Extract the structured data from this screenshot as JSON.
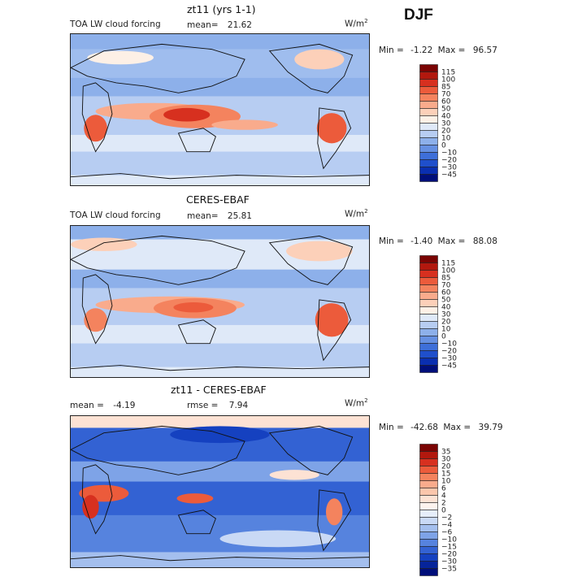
{
  "season": "DJF",
  "chart_data": [
    {
      "type": "heatmap",
      "title": "zt11 (yrs 1-1)",
      "subtitle": "TOA LW cloud forcing",
      "mean_label": "mean=",
      "mean_value": "21.62",
      "units": "W/m",
      "units_sup": "2",
      "min_label": "Min =",
      "min_value": "-1.22",
      "max_label": "Max =",
      "max_value": "96.57",
      "colorbar_levels": [
        "115",
        "100",
        "85",
        "70",
        "60",
        "50",
        "40",
        "30",
        "20",
        "10",
        "0",
        "-10",
        "-20",
        "-30",
        "-45"
      ],
      "colorbar_colors": [
        "#7a0403",
        "#b2180e",
        "#d7301f",
        "#ec5b3b",
        "#f4835e",
        "#f9ab8c",
        "#fcd0b9",
        "#fdf0e6",
        "#dfe9f8",
        "#b7cdf2",
        "#8db0ea",
        "#6690e2",
        "#3e6fd9",
        "#1f4fcb",
        "#0a2fb0",
        "#000f7a"
      ]
    },
    {
      "type": "heatmap",
      "title": "CERES-EBAF",
      "subtitle": "TOA LW cloud forcing",
      "mean_label": "mean=",
      "mean_value": "25.81",
      "units": "W/m",
      "units_sup": "2",
      "min_label": "Min =",
      "min_value": "-1.40",
      "max_label": "Max =",
      "max_value": "88.08",
      "colorbar_levels": [
        "115",
        "100",
        "85",
        "70",
        "60",
        "50",
        "40",
        "30",
        "20",
        "10",
        "0",
        "-10",
        "-20",
        "-30",
        "-45"
      ],
      "colorbar_colors": [
        "#7a0403",
        "#b2180e",
        "#d7301f",
        "#ec5b3b",
        "#f4835e",
        "#f9ab8c",
        "#fcd0b9",
        "#fdf0e6",
        "#dfe9f8",
        "#b7cdf2",
        "#8db0ea",
        "#6690e2",
        "#3e6fd9",
        "#1f4fcb",
        "#0a2fb0",
        "#000f7a"
      ]
    },
    {
      "type": "heatmap",
      "title": "zt11 - CERES-EBAF",
      "mean_label": "mean =",
      "mean_value": "-4.19",
      "rmse_label": "rmse =",
      "rmse_value": "7.94",
      "units": "W/m",
      "units_sup": "2",
      "min_label": "Min =",
      "min_value": "-42.68",
      "max_label": "Max =",
      "max_value": "39.79",
      "colorbar_levels": [
        "35",
        "30",
        "20",
        "15",
        "10",
        "6",
        "4",
        "2",
        "0",
        "-2",
        "-4",
        "-6",
        "-10",
        "-15",
        "-20",
        "-30",
        "-35"
      ],
      "colorbar_colors": [
        "#7a0403",
        "#b2180e",
        "#d7301f",
        "#ec5b3b",
        "#f4835e",
        "#f9ab8c",
        "#fbc6ac",
        "#fde2d4",
        "#fdf3ee",
        "#e6eefa",
        "#c9d9f5",
        "#a4bfee",
        "#7ea3e7",
        "#5683de",
        "#3362d3",
        "#1541c0",
        "#06249a",
        "#000f7a"
      ]
    }
  ]
}
